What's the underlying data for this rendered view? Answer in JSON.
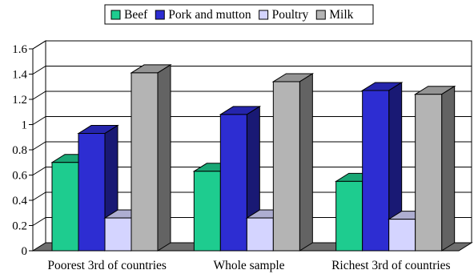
{
  "chart_data": {
    "type": "bar",
    "style": "3d-clustered-column",
    "categories": [
      "Poorest 3rd of countries",
      "Whole sample",
      "Richest 3rd of countries"
    ],
    "series": [
      {
        "name": "Beef",
        "values": [
          0.7,
          0.63,
          0.55
        ],
        "color": "#1ecc8f"
      },
      {
        "name": "Pork and mutton",
        "values": [
          0.93,
          1.08,
          1.27
        ],
        "color": "#2d2dd2"
      },
      {
        "name": "Poultry",
        "values": [
          0.26,
          0.26,
          0.25
        ],
        "color": "#d4d4ff"
      },
      {
        "name": "Milk",
        "values": [
          1.41,
          1.34,
          1.24
        ],
        "color": "#b4b4b4"
      }
    ],
    "yticks": [
      "0",
      "0.2",
      "0.4",
      "0.6",
      "0.8",
      "1",
      "1.2",
      "1.4",
      "1.6"
    ],
    "ylim": [
      0,
      1.6
    ],
    "grid": true,
    "legend_position": "top-center",
    "title": "",
    "xlabel": "",
    "ylabel": ""
  }
}
